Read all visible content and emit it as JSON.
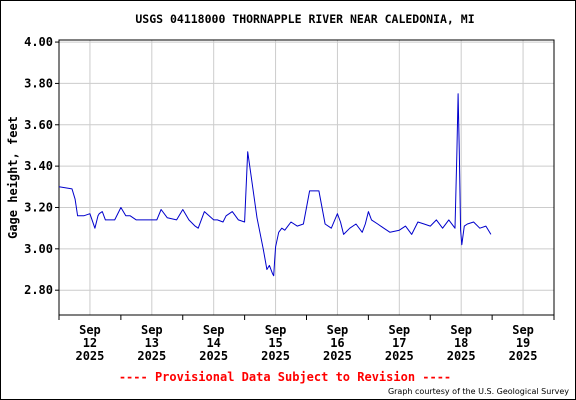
{
  "chart_data": {
    "type": "line",
    "title": "USGS 04118000 THORNAPPLE RIVER NEAR CALEDONIA, MI",
    "ylabel": "Gage height, feet",
    "xlabel": "",
    "ylim": [
      2.68,
      4.01
    ],
    "xlim": [
      -0.5,
      7.5
    ],
    "grid": true,
    "y_ticks": [
      "4.00",
      "3.80",
      "3.60",
      "3.40",
      "3.20",
      "3.00",
      "2.80"
    ],
    "y_tick_values": [
      4.0,
      3.8,
      3.6,
      3.4,
      3.2,
      3.0,
      2.8
    ],
    "x_ticks": [
      {
        "value": 0,
        "lines": [
          "Sep",
          "12",
          "2025"
        ]
      },
      {
        "value": 1,
        "lines": [
          "Sep",
          "13",
          "2025"
        ]
      },
      {
        "value": 2,
        "lines": [
          "Sep",
          "14",
          "2025"
        ]
      },
      {
        "value": 3,
        "lines": [
          "Sep",
          "15",
          "2025"
        ]
      },
      {
        "value": 4,
        "lines": [
          "Sep",
          "16",
          "2025"
        ]
      },
      {
        "value": 5,
        "lines": [
          "Sep",
          "17",
          "2025"
        ]
      },
      {
        "value": 6,
        "lines": [
          "Sep",
          "18",
          "2025"
        ]
      },
      {
        "value": 7,
        "lines": [
          "Sep",
          "19",
          "2025"
        ]
      }
    ],
    "x_minor_ticks": [
      -0.5,
      0.5,
      1.5,
      2.5,
      3.5,
      4.5,
      5.5,
      6.5,
      7.5
    ],
    "series": [
      {
        "color": "#0000cc",
        "x": [
          -0.5,
          -0.29,
          -0.24,
          -0.2,
          -0.1,
          0.0,
          0.08,
          0.13,
          0.15,
          0.2,
          0.25,
          0.3,
          0.4,
          0.5,
          0.58,
          0.6,
          0.65,
          0.75,
          0.9,
          1.0,
          1.08,
          1.15,
          1.25,
          1.4,
          1.5,
          1.6,
          1.7,
          1.75,
          1.85,
          2.0,
          2.06,
          2.15,
          2.2,
          2.3,
          2.4,
          2.5,
          2.55,
          2.7,
          2.8,
          2.86,
          2.9,
          2.95,
          2.97,
          2.985,
          3.0,
          3.05,
          3.1,
          3.15,
          3.2,
          3.25,
          3.35,
          3.45,
          3.5,
          3.55,
          3.6,
          3.7,
          3.8,
          3.9,
          4.0,
          4.05,
          4.1,
          4.2,
          4.3,
          4.4,
          4.45,
          4.5,
          4.55,
          4.65,
          4.75,
          4.85,
          5.0,
          5.1,
          5.2,
          5.3,
          5.4,
          5.5,
          5.6,
          5.7,
          5.8,
          5.9,
          5.93,
          5.95,
          5.97,
          5.99,
          6.01,
          6.05,
          6.1,
          6.2,
          6.3,
          6.4,
          6.48
        ],
        "y": [
          3.3,
          3.29,
          3.24,
          3.16,
          3.16,
          3.17,
          3.1,
          3.16,
          3.17,
          3.18,
          3.14,
          3.14,
          3.14,
          3.2,
          3.16,
          3.16,
          3.16,
          3.14,
          3.14,
          3.14,
          3.14,
          3.19,
          3.15,
          3.14,
          3.19,
          3.14,
          3.11,
          3.1,
          3.18,
          3.14,
          3.14,
          3.13,
          3.16,
          3.18,
          3.14,
          3.13,
          3.47,
          3.15,
          3.0,
          2.9,
          2.92,
          2.88,
          2.87,
          2.94,
          3.01,
          3.08,
          3.1,
          3.09,
          3.11,
          3.13,
          3.11,
          3.12,
          3.2,
          3.28,
          3.28,
          3.28,
          3.12,
          3.1,
          3.17,
          3.13,
          3.07,
          3.1,
          3.12,
          3.08,
          3.12,
          3.18,
          3.14,
          3.12,
          3.1,
          3.08,
          3.09,
          3.11,
          3.07,
          3.13,
          3.12,
          3.11,
          3.14,
          3.1,
          3.14,
          3.1,
          3.47,
          3.75,
          3.47,
          3.09,
          3.02,
          3.11,
          3.12,
          3.13,
          3.1,
          3.11,
          3.07
        ]
      }
    ]
  },
  "footer": {
    "provisional": "---- Provisional Data Subject to Revision ----",
    "provisional_color": "#ff0000",
    "courtesy": "Graph courtesy of the U.S. Geological Survey"
  },
  "colors": {
    "grid": "#cccccc",
    "axis": "#000000",
    "line": "#0000cc"
  }
}
